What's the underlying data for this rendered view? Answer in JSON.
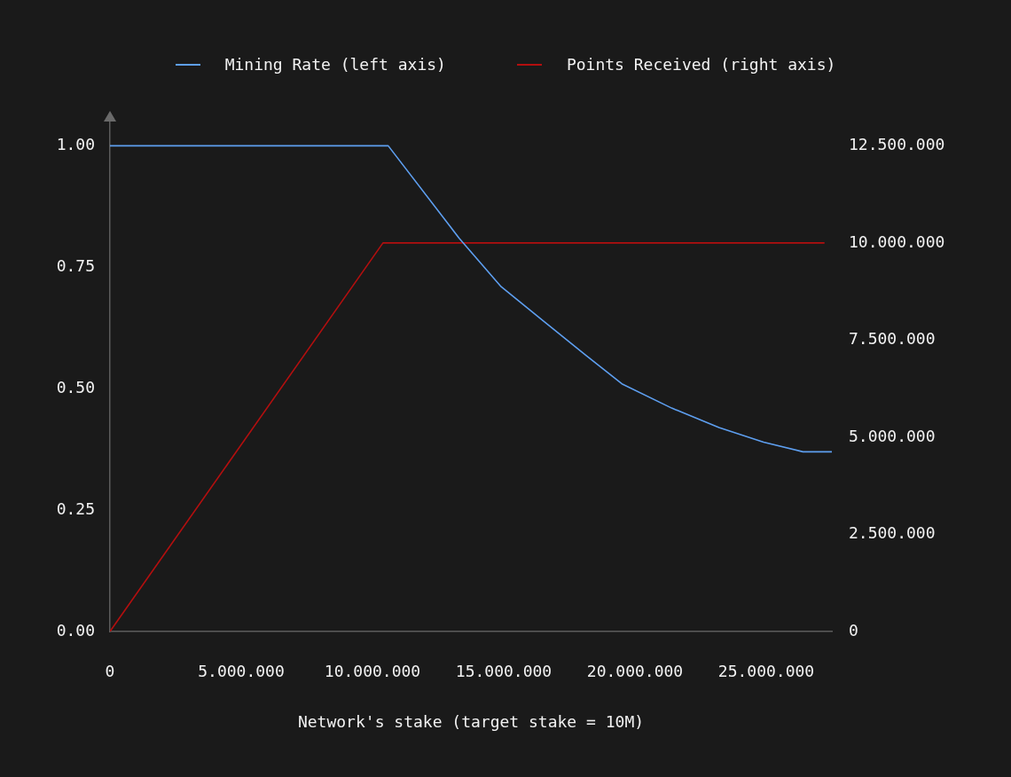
{
  "chart_data": {
    "type": "line",
    "xlabel": "Network's stake (target stake = 10M)",
    "xlim": [
      0,
      27500000
    ],
    "xticks": [
      0,
      {
        "value": 5000000,
        "label": "5.000.000"
      },
      {
        "value": 10000000,
        "label": "10.000.000"
      },
      {
        "value": 15000000,
        "label": "15.000.000"
      },
      {
        "value": 20000000,
        "label": "20.000.000"
      },
      {
        "value": 25000000,
        "label": "25.000.000"
      }
    ],
    "ylim": [
      0,
      1.05
    ],
    "yticks": [
      {
        "value": 0,
        "label": "0.00"
      },
      0.25,
      {
        "value": 0.5,
        "label": "0.50"
      },
      0.75,
      {
        "value": 1,
        "label": "1.00"
      }
    ],
    "y2lim": [
      0,
      13125000
    ],
    "y2ticks": [
      0,
      {
        "value": 2500000,
        "label": "2.500.000"
      },
      {
        "value": 5000000,
        "label": "5.000.000"
      },
      {
        "value": 7500000,
        "label": "7.500.000"
      },
      {
        "value": 10000000,
        "label": "10.000.000"
      },
      {
        "value": 12500000,
        "label": "12.500.000"
      }
    ],
    "series": [
      {
        "name": "Mining Rate (left axis)",
        "color": "#5e9ff0",
        "x": [
          0,
          10600000,
          13300000,
          14900000,
          16500000,
          18100000,
          19500000,
          21400000,
          23200000,
          24900000,
          26400000,
          27500000
        ],
        "values": [
          1,
          1,
          0.81,
          0.71,
          0.64,
          0.57,
          0.51,
          0.46,
          0.42,
          0.39,
          0.37,
          0.37
        ]
      },
      {
        "name": "Points Received (right axis)",
        "color": "#b30f0f",
        "axis": "y2",
        "x": [
          0,
          10400000,
          27200000
        ],
        "values": [
          0,
          10000000,
          10000000
        ]
      }
    ],
    "legend": "top",
    "grid": false,
    "marker": "none",
    "line_style": "solid"
  }
}
